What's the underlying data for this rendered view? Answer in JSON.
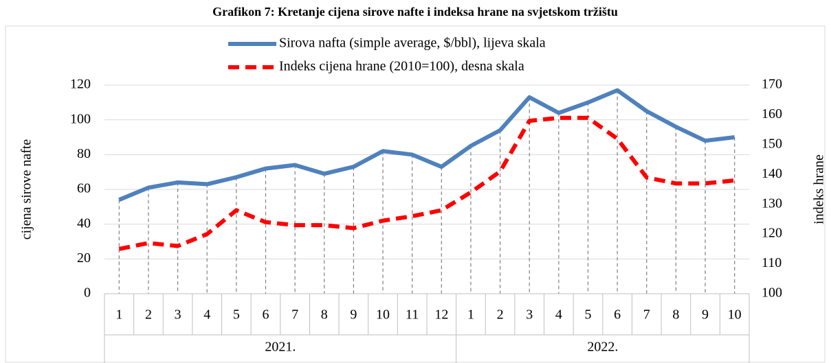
{
  "chart_data": {
    "type": "line",
    "title": "Grafikon 7: Kretanje cijena sirove nafte i indeksa hrane na svjetskom tržištu",
    "y_label": "cijena sirove nafte",
    "y2_label": "indeks hrane",
    "category_groups": [
      {
        "name": "2021.",
        "categories": [
          "1",
          "2",
          "3",
          "4",
          "5",
          "6",
          "7",
          "8",
          "9",
          "10",
          "11",
          "12"
        ]
      },
      {
        "name": "2022.",
        "categories": [
          "1",
          "2",
          "3",
          "4",
          "5",
          "6",
          "7",
          "8",
          "9",
          "10"
        ]
      }
    ],
    "series": [
      {
        "name": "Sirova nafta (simple average, $/bbl), lijeva skala",
        "color": "#4f81bd",
        "dash": false,
        "axis": "y",
        "values": [
          54,
          61,
          64,
          63,
          67,
          72,
          74,
          69,
          73,
          82,
          80,
          73,
          85,
          94,
          113,
          104,
          110,
          117,
          105,
          96,
          88,
          90
        ]
      },
      {
        "name": "Indeks cijena hrane (2010=100), desna skala",
        "color": "#ff0000",
        "dash": true,
        "axis": "y2",
        "values": [
          115,
          117,
          116,
          120,
          128,
          124,
          123,
          123,
          122,
          124.5,
          126,
          128,
          134,
          141,
          158,
          159,
          159,
          152,
          139,
          137,
          137,
          138
        ]
      }
    ],
    "ylim": [
      0,
      120
    ],
    "yticks": [
      0,
      20,
      40,
      60,
      80,
      100,
      120
    ],
    "y2lim": [
      100,
      170
    ],
    "y2ticks": [
      100,
      110,
      120,
      130,
      140,
      150,
      160,
      170
    ],
    "grid": true,
    "legend": "top"
  }
}
